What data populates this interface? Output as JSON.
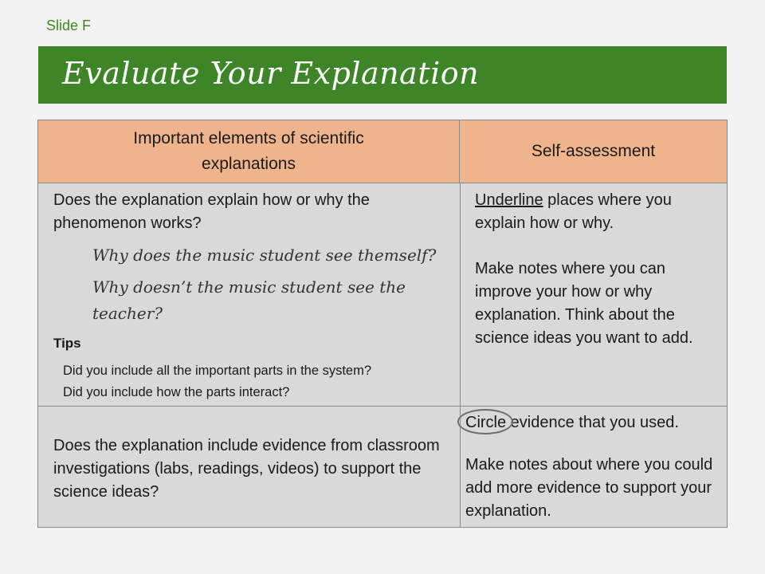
{
  "slide_label": "Slide F",
  "title": "Evaluate Your Explanation",
  "table": {
    "headers": {
      "left": "Important elements of scientific explanations",
      "right": "Self-assessment"
    },
    "row1": {
      "question": "Does the explanation explain how or why the phenomenon works?",
      "example_q1": "Why does the music student see themself?",
      "example_q2": "Why doesn’t the music student see the teacher?",
      "tips_heading": "Tips",
      "tip1": "Did you include all the important parts in the system?",
      "tip2": "Did you include how the parts interact?",
      "assess_keyword": "Underline",
      "assess_rest": " places where you explain how or why.",
      "assess_notes": "Make notes where you can improve your how or why explanation. Think about the science ideas you want to add."
    },
    "row2": {
      "question": "Does the explanation include evidence from classroom investigations (labs, readings, videos) to support the science ideas?",
      "assess_keyword": "Circle",
      "assess_rest": " evidence that you used.",
      "assess_notes": "Make notes about where you could add more evidence to support your explanation."
    }
  }
}
